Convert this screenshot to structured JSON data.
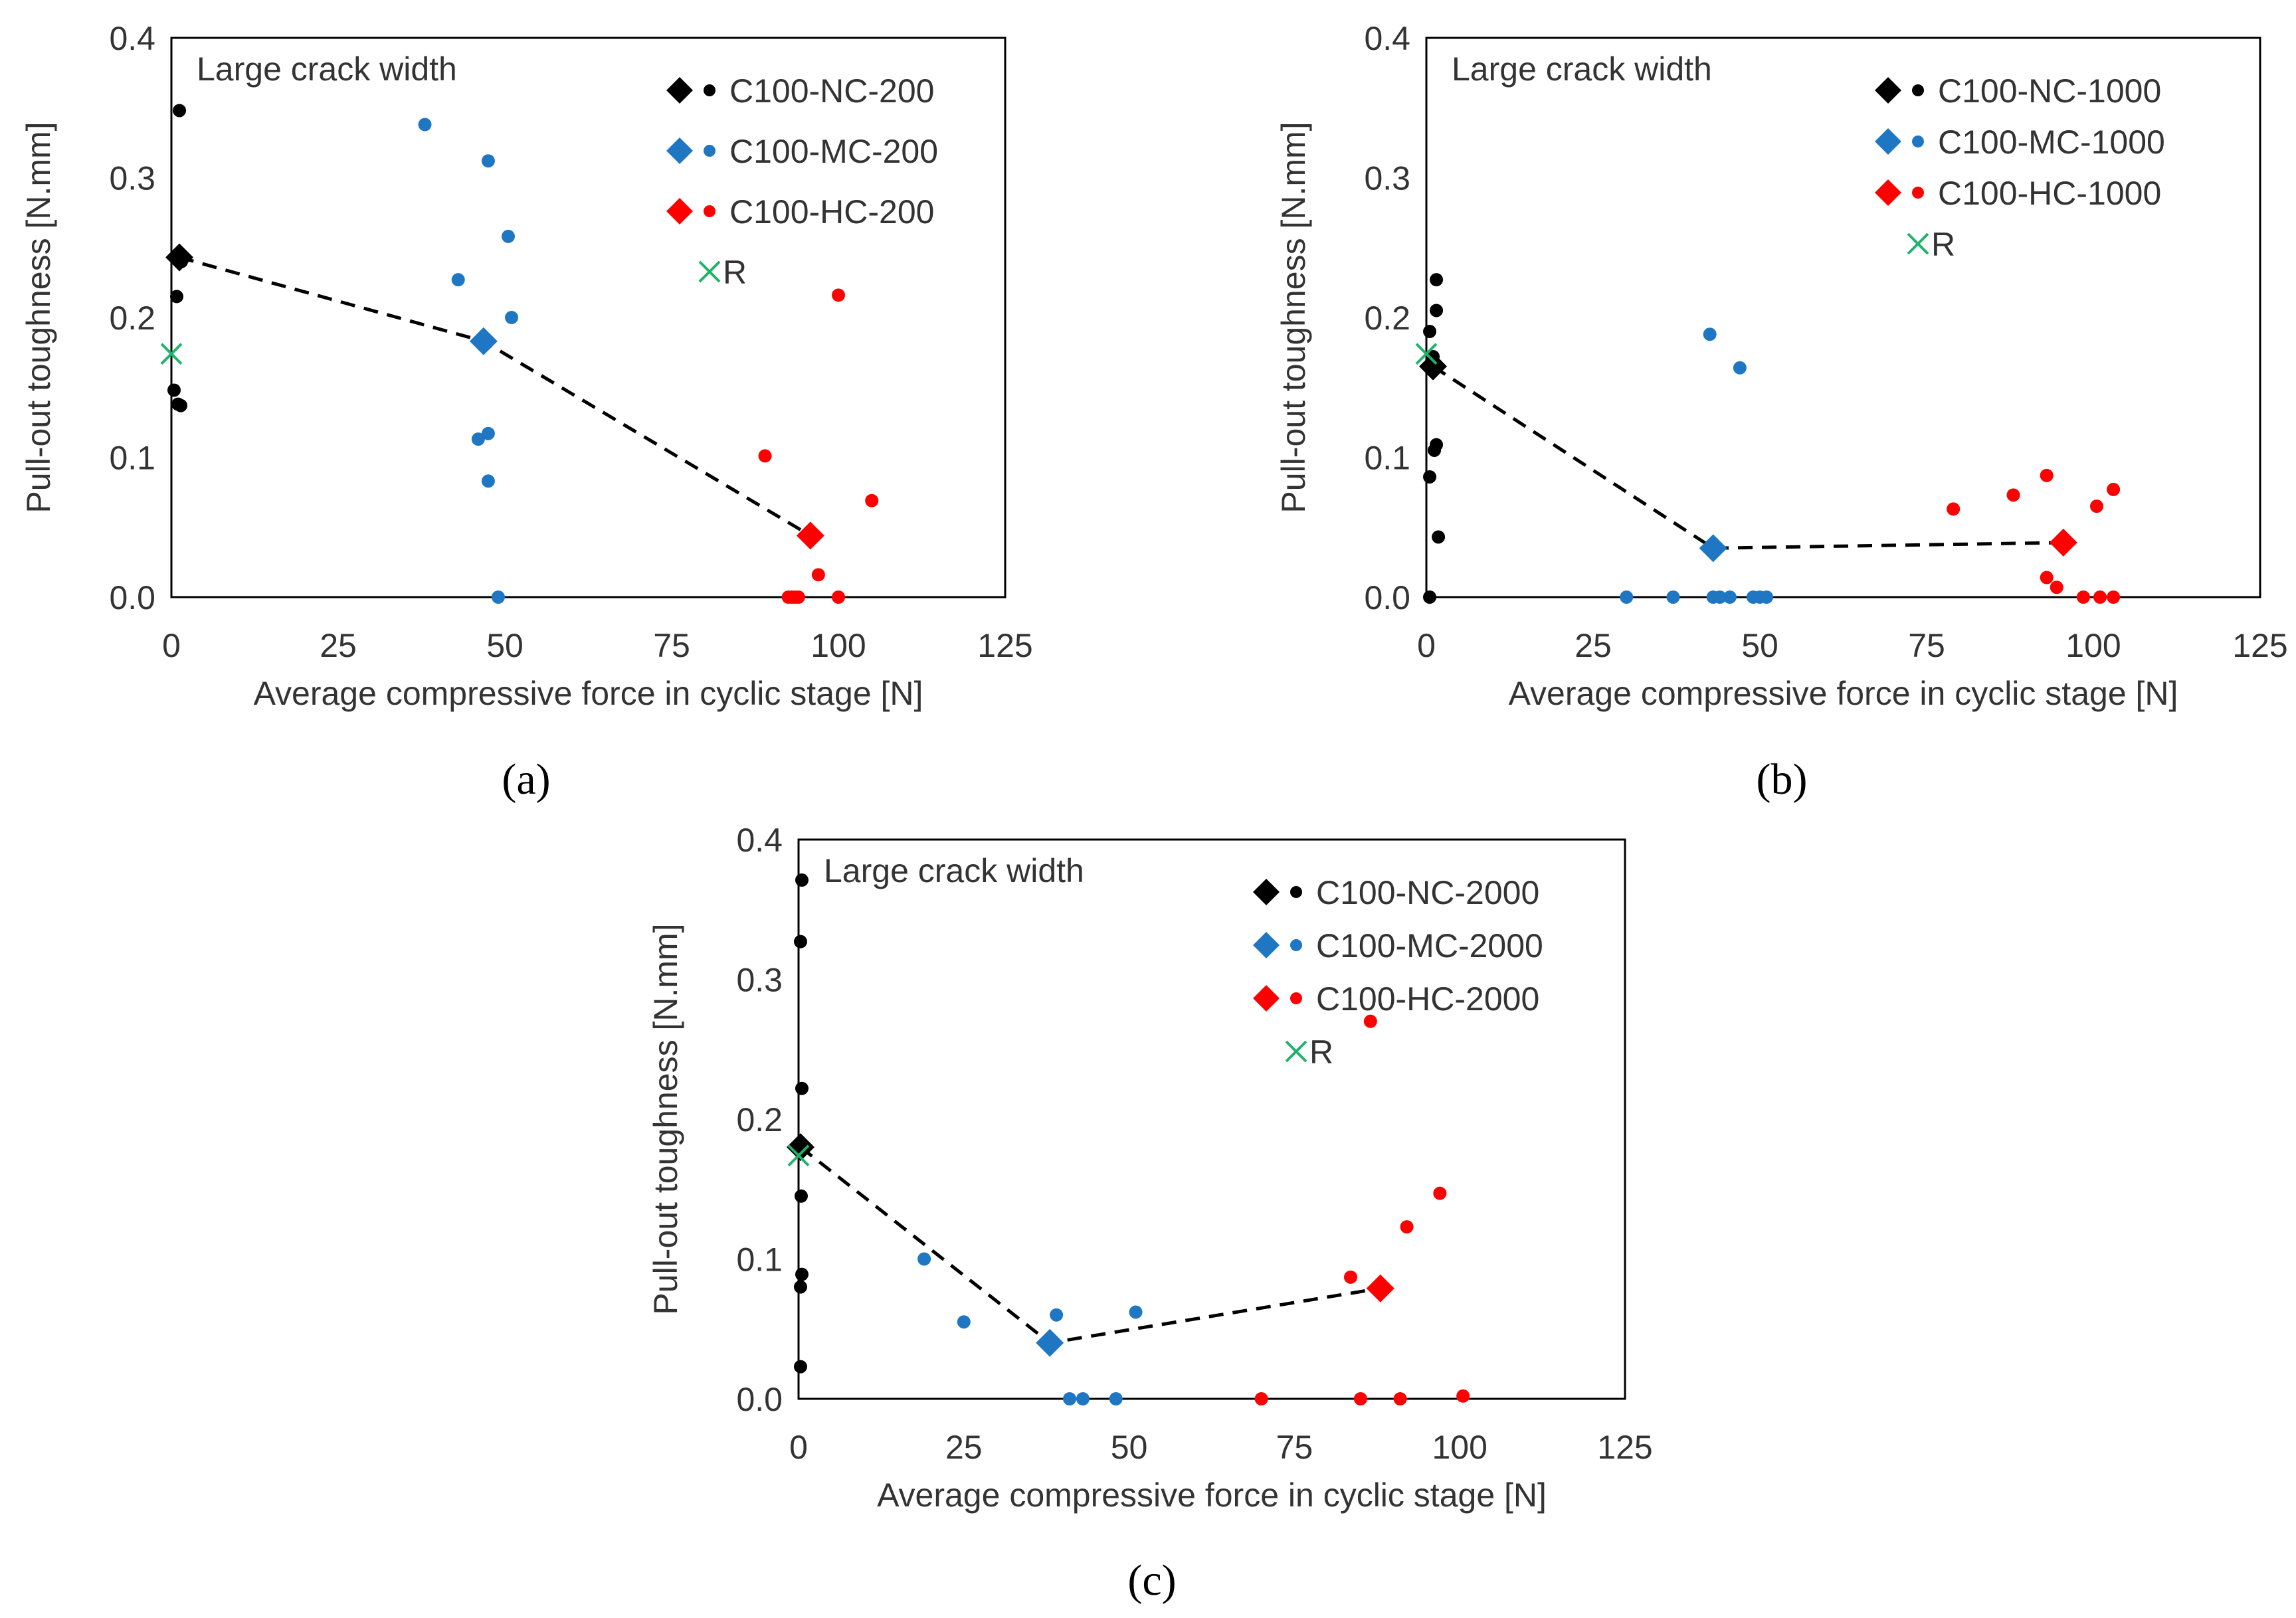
{
  "chart_data": [
    {
      "type": "scatter",
      "panel_label": "(a)",
      "xlabel": "Average compressive force in cyclic stage [N]",
      "ylabel": "Pull-out toughness [N.mm]",
      "annotation": "Large crack width",
      "xlim": [
        0,
        125
      ],
      "ylim": [
        0,
        0.4
      ],
      "x_ticks": [
        0,
        25,
        50,
        75,
        100,
        125
      ],
      "y_ticks": [
        0.0,
        0.1,
        0.2,
        0.3,
        0.4
      ],
      "x_tick_labels": [
        "0",
        "25",
        "50",
        "75",
        "100",
        "125"
      ],
      "y_tick_labels": [
        "0.0",
        "0.1",
        "0.2",
        "0.3",
        "0.4"
      ],
      "grid": false,
      "legend_position": "top-right",
      "series": [
        {
          "name": "C100-NC-200",
          "color": "#000000",
          "points": [
            [
              1.2,
              0.348
            ],
            [
              0.8,
              0.215
            ],
            [
              0.4,
              0.148
            ],
            [
              1.0,
              0.138
            ],
            [
              1.4,
              0.137
            ],
            [
              1.5,
              0.24
            ]
          ],
          "mean": [
            1.2,
            0.243
          ]
        },
        {
          "name": "C100-MC-200",
          "color": "#1f77c4",
          "points": [
            [
              38,
              0.338
            ],
            [
              47.5,
              0.312
            ],
            [
              50.5,
              0.258
            ],
            [
              43,
              0.227
            ],
            [
              51,
              0.2
            ],
            [
              47,
              0.185
            ],
            [
              47.5,
              0.117
            ],
            [
              46,
              0.113
            ],
            [
              47.5,
              0.083
            ],
            [
              49,
              0.0
            ]
          ],
          "mean": [
            46.8,
            0.183
          ]
        },
        {
          "name": "C100-HC-200",
          "color": "#ff0000",
          "points": [
            [
              100,
              0.216
            ],
            [
              89,
              0.101
            ],
            [
              105,
              0.069
            ],
            [
              97,
              0.016
            ],
            [
              92.5,
              0.0
            ],
            [
              93,
              0.0
            ],
            [
              93.5,
              0.0
            ],
            [
              94,
              0.0
            ],
            [
              100,
              0.0
            ]
          ],
          "mean": [
            95.8,
            0.044
          ]
        },
        {
          "name": "R",
          "color": "#1db36a",
          "points": [
            [
              0,
              0.174
            ]
          ]
        }
      ],
      "mean_trend": [
        [
          1.2,
          0.243
        ],
        [
          46.8,
          0.183
        ],
        [
          95.8,
          0.044
        ]
      ]
    },
    {
      "type": "scatter",
      "panel_label": "(b)",
      "xlabel": "Average compressive force in cyclic stage [N]",
      "ylabel": "Pull-out toughness [N.mm]",
      "annotation": "Large crack width",
      "xlim": [
        0,
        125
      ],
      "ylim": [
        0,
        0.4
      ],
      "x_ticks": [
        0,
        25,
        50,
        75,
        100,
        125
      ],
      "y_ticks": [
        0.0,
        0.1,
        0.2,
        0.3,
        0.4
      ],
      "x_tick_labels": [
        "0",
        "25",
        "50",
        "75",
        "100",
        "125"
      ],
      "y_tick_labels": [
        "0.0",
        "0.1",
        "0.2",
        "0.3",
        "0.4"
      ],
      "grid": false,
      "legend_position": "top-right",
      "series": [
        {
          "name": "C100-NC-1000",
          "color": "#000000",
          "points": [
            [
              1.5,
              0.227
            ],
            [
              1.5,
              0.205
            ],
            [
              0.5,
              0.19
            ],
            [
              1.0,
              0.172
            ],
            [
              1.5,
              0.166
            ],
            [
              1.5,
              0.109
            ],
            [
              1.2,
              0.105
            ],
            [
              0.5,
              0.086
            ],
            [
              1.8,
              0.043
            ],
            [
              0.5,
              0.0
            ]
          ],
          "mean": [
            1.0,
            0.165
          ]
        },
        {
          "name": "C100-MC-1000",
          "color": "#1f77c4",
          "points": [
            [
              42.5,
              0.188
            ],
            [
              47,
              0.164
            ],
            [
              30,
              0.0
            ],
            [
              37,
              0.0
            ],
            [
              43,
              0.0
            ],
            [
              44,
              0.0
            ],
            [
              45.5,
              0.0
            ],
            [
              49,
              0.0
            ],
            [
              50,
              0.0
            ],
            [
              51,
              0.0
            ]
          ],
          "mean": [
            43,
            0.035
          ]
        },
        {
          "name": "C100-HC-1000",
          "color": "#ff0000",
          "points": [
            [
              93,
              0.087
            ],
            [
              103,
              0.077
            ],
            [
              88,
              0.073
            ],
            [
              100.5,
              0.065
            ],
            [
              79,
              0.063
            ],
            [
              93,
              0.014
            ],
            [
              94.5,
              0.007
            ],
            [
              98.5,
              0.0
            ],
            [
              101,
              0.0
            ],
            [
              103,
              0.0
            ]
          ],
          "mean": [
            95.5,
            0.039
          ]
        },
        {
          "name": "R",
          "color": "#1db36a",
          "points": [
            [
              0,
              0.174
            ]
          ]
        }
      ],
      "mean_trend": [
        [
          1.0,
          0.165
        ],
        [
          43,
          0.035
        ],
        [
          95.5,
          0.039
        ]
      ]
    },
    {
      "type": "scatter",
      "panel_label": "(c)",
      "xlabel": "Average compressive force in cyclic stage [N]",
      "ylabel": "Pull-out toughness [N.mm]",
      "annotation": "Large crack width",
      "xlim": [
        0,
        125
      ],
      "ylim": [
        0,
        0.4
      ],
      "x_ticks": [
        0,
        25,
        50,
        75,
        100,
        125
      ],
      "y_ticks": [
        0.0,
        0.1,
        0.2,
        0.3,
        0.4
      ],
      "x_tick_labels": [
        "0",
        "25",
        "50",
        "75",
        "100",
        "125"
      ],
      "y_tick_labels": [
        "0.0",
        "0.1",
        "0.2",
        "0.3",
        "0.4"
      ],
      "grid": false,
      "legend_position": "top-right",
      "series": [
        {
          "name": "C100-NC-2000",
          "color": "#000000",
          "points": [
            [
              0.5,
              0.371
            ],
            [
              0.3,
              0.327
            ],
            [
              0.5,
              0.222
            ],
            [
              0.4,
              0.145
            ],
            [
              0.5,
              0.089
            ],
            [
              0.3,
              0.08
            ],
            [
              0.3,
              0.023
            ]
          ],
          "mean": [
            0.3,
            0.18
          ]
        },
        {
          "name": "C100-MC-2000",
          "color": "#1f77c4",
          "points": [
            [
              19,
              0.1
            ],
            [
              25,
              0.055
            ],
            [
              39,
              0.06
            ],
            [
              51,
              0.062
            ],
            [
              41,
              0.0
            ],
            [
              43,
              0.0
            ],
            [
              48,
              0.0
            ]
          ],
          "mean": [
            38,
            0.04
          ]
        },
        {
          "name": "C100-HC-2000",
          "color": "#ff0000",
          "points": [
            [
              86.5,
              0.27
            ],
            [
              97,
              0.147
            ],
            [
              92,
              0.123
            ],
            [
              83.5,
              0.087
            ],
            [
              70,
              0.0
            ],
            [
              85,
              0.0
            ],
            [
              91,
              0.0
            ],
            [
              100.5,
              0.002
            ]
          ],
          "mean": [
            88,
            0.079
          ]
        },
        {
          "name": "R",
          "color": "#1db36a",
          "points": [
            [
              0,
              0.174
            ]
          ]
        }
      ],
      "mean_trend": [
        [
          0.3,
          0.18
        ],
        [
          38,
          0.04
        ],
        [
          88,
          0.079
        ]
      ]
    }
  ]
}
